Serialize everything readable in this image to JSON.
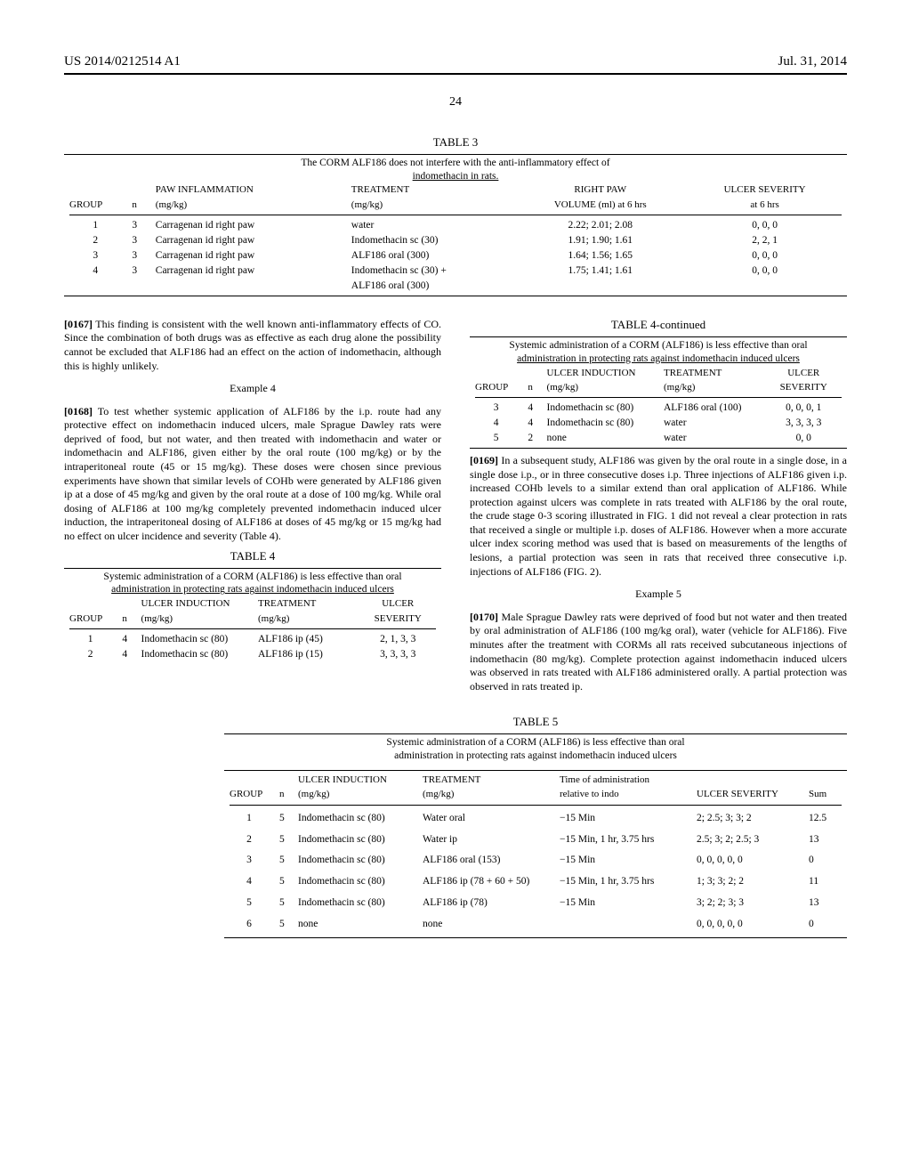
{
  "header": {
    "left": "US 2014/0212514 A1",
    "right": "Jul. 31, 2014",
    "page": "24"
  },
  "table3": {
    "label": "TABLE 3",
    "caption1": "The CORM ALF186 does not interfere with the anti-inflammatory effect of",
    "caption2": "indomethacin in rats.",
    "headers": {
      "group": "GROUP",
      "n": "n",
      "paw1": "PAW INFLAMMATION",
      "paw2": "(mg/kg)",
      "treat1": "TREATMENT",
      "treat2": "(mg/kg)",
      "vol1": "RIGHT PAW",
      "vol2": "VOLUME (ml) at 6 hrs",
      "ulc1": "ULCER SEVERITY",
      "ulc2": "at 6 hrs"
    },
    "rows": [
      {
        "g": "1",
        "n": "3",
        "paw": "Carragenan id right paw",
        "treat": "water",
        "vol": "2.22; 2.01; 2.08",
        "ulc": "0, 0, 0"
      },
      {
        "g": "2",
        "n": "3",
        "paw": "Carragenan id right paw",
        "treat": "Indomethacin sc (30)",
        "vol": "1.91; 1.90; 1.61",
        "ulc": "2, 2, 1"
      },
      {
        "g": "3",
        "n": "3",
        "paw": "Carragenan id right paw",
        "treat": "ALF186 oral (300)",
        "vol": "1.64; 1.56; 1.65",
        "ulc": "0, 0, 0"
      },
      {
        "g": "4",
        "n": "3",
        "paw": "Carragenan id right paw",
        "treat": "Indomethacin sc (30) +",
        "vol": "1.75; 1.41; 1.61",
        "ulc": "0, 0, 0"
      },
      {
        "g": "",
        "n": "",
        "paw": "",
        "treat": "ALF186 oral (300)",
        "vol": "",
        "ulc": ""
      }
    ]
  },
  "paragraphs": {
    "p0167_num": "[0167]",
    "p0167": " This finding is consistent with the well known anti-inflammatory effects of CO. Since the combination of both drugs was as effective as each drug alone the possibility cannot be excluded that ALF186 had an effect on the action of indomethacin, although this is highly unlikely.",
    "eg4": "Example 4",
    "p0168_num": "[0168]",
    "p0168": " To test whether systemic application of ALF186 by the i.p. route had any protective effect on indomethacin induced ulcers, male Sprague Dawley rats were deprived of food, but not water, and then treated with indomethacin and water or indomethacin and ALF186, given either by the oral route (100 mg/kg) or by the intraperitoneal route (45 or 15 mg/kg). These doses were chosen since previous experiments have shown that similar levels of COHb were generated by ALF186 given ip at a dose of 45 mg/kg and given by the oral route at a dose of 100 mg/kg. While oral dosing of ALF186 at 100 mg/kg completely prevented indomethacin induced ulcer induction, the intraperitoneal dosing of ALF186 at doses of 45 mg/kg or 15 mg/kg had no effect on ulcer incidence and severity (Table 4).",
    "p0169_num": "[0169]",
    "p0169": " In a subsequent study, ALF186 was given by the oral route in a single dose, in a single dose i.p., or in three consecutive doses i.p. Three injections of ALF186 given i.p. increased COHb levels to a similar extend than oral application of ALF186. While protection against ulcers was complete in rats treated with ALF186 by the oral route, the crude stage 0-3 scoring illustrated in FIG. 1 did not reveal a clear protection in rats that received a single or multiple i.p. doses of ALF186. However when a more accurate ulcer index scoring method was used that is based on measurements of the lengths of lesions, a partial protection was seen in rats that received three consecutive i.p. injections of ALF186 (FIG. 2).",
    "eg5": "Example 5",
    "p0170_num": "[0170]",
    "p0170": " Male Sprague Dawley rats were deprived of food but not water and then treated by oral administration of ALF186 (100 mg/kg oral), water (vehicle for ALF186). Five minutes after the treatment with CORMs all rats received subcutaneous injections of indomethacin (80 mg/kg). Complete protection against indomethacin induced ulcers was observed in rats treated with ALF186 administered orally. A partial protection was observed in rats treated ip."
  },
  "table4a": {
    "label": "TABLE 4",
    "caption1": "Systemic administration of a CORM (ALF186) is less effective than oral",
    "caption2": "administration in protecting rats against indomethacin induced ulcers",
    "headers": {
      "group": "GROUP",
      "n": "n",
      "ind1": "ULCER INDUCTION",
      "ind2": "(mg/kg)",
      "treat1": "TREATMENT",
      "treat2": "(mg/kg)",
      "ulc1": "ULCER",
      "ulc2": "SEVERITY"
    },
    "rows": [
      {
        "g": "1",
        "n": "4",
        "ind": "Indomethacin sc (80)",
        "treat": "ALF186 ip (45)",
        "ulc": "2, 1, 3, 3"
      },
      {
        "g": "2",
        "n": "4",
        "ind": "Indomethacin sc (80)",
        "treat": "ALF186 ip (15)",
        "ulc": "3, 3, 3, 3"
      }
    ]
  },
  "table4b": {
    "label": "TABLE 4-continued",
    "caption1": "Systemic administration of a CORM (ALF186) is less effective than oral",
    "caption2": "administration in protecting rats against indomethacin induced ulcers",
    "headers": {
      "group": "GROUP",
      "n": "n",
      "ind1": "ULCER INDUCTION",
      "ind2": "(mg/kg)",
      "treat1": "TREATMENT",
      "treat2": "(mg/kg)",
      "ulc1": "ULCER",
      "ulc2": "SEVERITY"
    },
    "rows": [
      {
        "g": "3",
        "n": "4",
        "ind": "Indomethacin sc (80)",
        "treat": "ALF186 oral (100)",
        "ulc": "0, 0, 0, 1"
      },
      {
        "g": "4",
        "n": "4",
        "ind": "Indomethacin sc (80)",
        "treat": "water",
        "ulc": "3, 3, 3, 3"
      },
      {
        "g": "5",
        "n": "2",
        "ind": "none",
        "treat": "water",
        "ulc": "0, 0"
      }
    ]
  },
  "table5": {
    "label": "TABLE 5",
    "caption1": "Systemic administration of a CORM (ALF186) is less effective than oral",
    "caption2": "administration in protecting rats against indomethacin induced ulcers",
    "headers": {
      "group": "GROUP",
      "n": "n",
      "ind1": "ULCER INDUCTION",
      "ind2": "(mg/kg)",
      "treat1": "TREATMENT",
      "treat2": "(mg/kg)",
      "time1": "Time of administration",
      "time2": "relative to indo",
      "ulc": "ULCER SEVERITY",
      "sum": "Sum"
    },
    "rows": [
      {
        "g": "1",
        "n": "5",
        "ind": "Indomethacin sc (80)",
        "treat": "Water oral",
        "time": "−15 Min",
        "ulc": "2; 2.5; 3; 3; 2",
        "sum": "12.5"
      },
      {
        "g": "2",
        "n": "5",
        "ind": "Indomethacin sc (80)",
        "treat": "Water ip",
        "time": "−15 Min, 1 hr, 3.75 hrs",
        "ulc": "2.5; 3; 2; 2.5; 3",
        "sum": "13"
      },
      {
        "g": "3",
        "n": "5",
        "ind": "Indomethacin sc (80)",
        "treat": "ALF186 oral (153)",
        "time": "−15 Min",
        "ulc": "0, 0, 0, 0, 0",
        "sum": "0"
      },
      {
        "g": "4",
        "n": "5",
        "ind": "Indomethacin sc (80)",
        "treat": "ALF186 ip (78 + 60 + 50)",
        "time": "−15 Min, 1 hr, 3.75 hrs",
        "ulc": "1; 3; 3; 2; 2",
        "sum": "11"
      },
      {
        "g": "5",
        "n": "5",
        "ind": "Indomethacin sc (80)",
        "treat": "ALF186 ip (78)",
        "time": "−15 Min",
        "ulc": "3; 2; 2; 3; 3",
        "sum": "13"
      },
      {
        "g": "6",
        "n": "5",
        "ind": "none",
        "treat": "none",
        "time": "",
        "ulc": "0, 0, 0, 0, 0",
        "sum": "0"
      }
    ]
  }
}
